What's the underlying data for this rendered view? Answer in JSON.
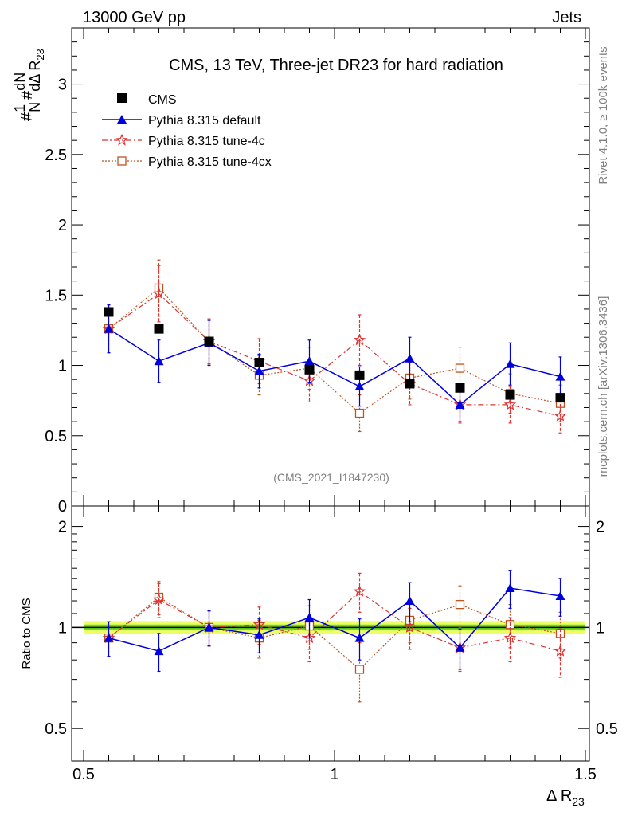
{
  "header": {
    "left": "13000 GeV pp",
    "right": "Jets"
  },
  "side_labels": {
    "rivet": "Rivet 4.1.0, ≥ 100k events",
    "mcplots": "mcplots.cern.ch [arXiv:1306.3436]"
  },
  "colors": {
    "cms": "#000000",
    "default": "#0000dd",
    "tune4c": "#dd3333",
    "tune4cx": "#bb5522",
    "band_inner": "#66dd22",
    "band_outer": "#eeff66"
  },
  "chart_data": [
    {
      "type": "line",
      "title": "CMS, 13 TeV, Three-jet DR23 for hard radiation",
      "analysis_tag": "(CMS_2021_I1847230)",
      "ylabel_parts": {
        "one": "1",
        "N": "N",
        "hash1": "#",
        "hash2": "#",
        "dN": "dN",
        "dDR": "dΔ R",
        "sub": "23"
      },
      "xlim": [
        0.5,
        1.5
      ],
      "ylim": [
        0,
        3.4
      ],
      "yticks": [
        0,
        0.5,
        1,
        1.5,
        2,
        2.5,
        3
      ],
      "yticklabels": [
        "0",
        "0.5",
        "1",
        "1.5",
        "2",
        "2.5",
        "3"
      ],
      "x": [
        0.55,
        0.65,
        0.75,
        0.85,
        0.95,
        1.05,
        1.15,
        1.25,
        1.35,
        1.45
      ],
      "series": [
        {
          "name": "CMS",
          "key": "cms",
          "marker": "square",
          "values": [
            1.38,
            1.26,
            1.17,
            1.02,
            0.97,
            0.93,
            0.87,
            0.84,
            0.79,
            0.77
          ]
        },
        {
          "name": "Pythia 8.315 default",
          "key": "default",
          "marker": "triangle",
          "values": [
            1.26,
            1.03,
            1.16,
            0.96,
            1.03,
            0.85,
            1.05,
            0.72,
            1.01,
            0.92
          ],
          "errors": [
            0.17,
            0.15,
            0.16,
            0.12,
            0.15,
            0.14,
            0.15,
            0.12,
            0.15,
            0.14
          ]
        },
        {
          "name": "Pythia 8.315 tune-4c",
          "key": "tune4c",
          "marker": "star",
          "values": [
            1.26,
            1.51,
            1.17,
            1.03,
            0.89,
            1.18,
            0.87,
            0.72,
            0.72,
            0.64
          ],
          "errors": [
            0.17,
            0.2,
            0.16,
            0.16,
            0.15,
            0.18,
            0.15,
            0.13,
            0.13,
            0.12
          ]
        },
        {
          "name": "Pythia 8.315 tune-4cx",
          "key": "tune4cx",
          "marker": "open-square",
          "values": [
            1.26,
            1.55,
            1.17,
            0.93,
            0.98,
            0.66,
            0.91,
            0.98,
            0.8,
            0.73
          ],
          "errors": [
            0.17,
            0.2,
            0.16,
            0.14,
            0.15,
            0.13,
            0.15,
            0.15,
            0.14,
            0.13
          ]
        }
      ]
    },
    {
      "type": "line",
      "ylabel": "Ratio to CMS",
      "xlabel_main": "Δ R",
      "xlabel_sub": "23",
      "xlim": [
        0.5,
        1.5
      ],
      "ylim": [
        0.4,
        2.3
      ],
      "yscale": "log",
      "yticks": [
        0.5,
        1,
        2
      ],
      "yticklabels": [
        "0.5",
        "1",
        "2"
      ],
      "xticks": [
        0.5,
        1,
        1.5
      ],
      "xticklabels": [
        "0.5",
        "1",
        "1.5"
      ],
      "x": [
        0.55,
        0.65,
        0.75,
        0.85,
        0.95,
        1.05,
        1.15,
        1.25,
        1.35,
        1.45
      ],
      "band": {
        "inner": [
          0.98,
          1.02
        ],
        "outer": [
          0.955,
          1.045
        ]
      },
      "series": [
        {
          "name": "Pythia 8.315 default",
          "key": "default",
          "marker": "triangle",
          "values": [
            0.93,
            0.85,
            1.0,
            0.95,
            1.07,
            0.93,
            1.2,
            0.87,
            1.31,
            1.24
          ],
          "errors": [
            0.11,
            0.11,
            0.12,
            0.11,
            0.14,
            0.13,
            0.16,
            0.12,
            0.17,
            0.16
          ]
        },
        {
          "name": "Pythia 8.315 tune-4c",
          "key": "tune4c",
          "marker": "star",
          "values": [
            0.93,
            1.21,
            1.0,
            1.02,
            0.93,
            1.28,
            1.0,
            0.87,
            0.93,
            0.85
          ],
          "errors": [
            0.11,
            0.14,
            0.12,
            0.13,
            0.14,
            0.17,
            0.14,
            0.13,
            0.14,
            0.14
          ]
        },
        {
          "name": "Pythia 8.315 tune-4cx",
          "key": "tune4cx",
          "marker": "open-square",
          "values": [
            0.93,
            1.23,
            1.0,
            0.93,
            1.01,
            0.75,
            1.05,
            1.17,
            1.02,
            0.96
          ],
          "errors": [
            0.11,
            0.14,
            0.12,
            0.12,
            0.15,
            0.15,
            0.15,
            0.16,
            0.15,
            0.15
          ]
        }
      ]
    }
  ]
}
